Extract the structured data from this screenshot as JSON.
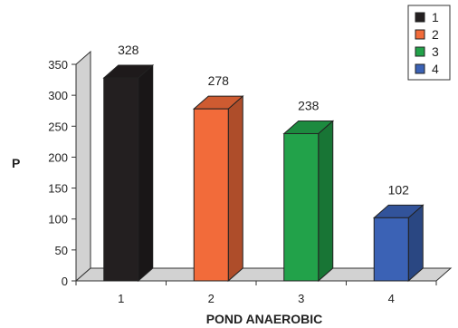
{
  "chart_data": {
    "type": "bar",
    "categories": [
      "1",
      "2",
      "3",
      "4"
    ],
    "values": [
      328,
      278,
      238,
      102
    ],
    "xlabel": "POND ANAEROBIC",
    "ylabel": "P",
    "ylim": [
      0,
      350
    ],
    "yticks": [
      0,
      50,
      100,
      150,
      200,
      250,
      300,
      350
    ],
    "style": "3d",
    "grid": false,
    "legend_position": "top-right",
    "legend": [
      {
        "label": "1",
        "color": "#231f20"
      },
      {
        "label": "2",
        "color": "#f26b3a"
      },
      {
        "label": "3",
        "color": "#22a24a"
      },
      {
        "label": "4",
        "color": "#3b62b5"
      }
    ],
    "colors": [
      "#231f20",
      "#f26b3a",
      "#22a24a",
      "#3b62b5"
    ]
  }
}
